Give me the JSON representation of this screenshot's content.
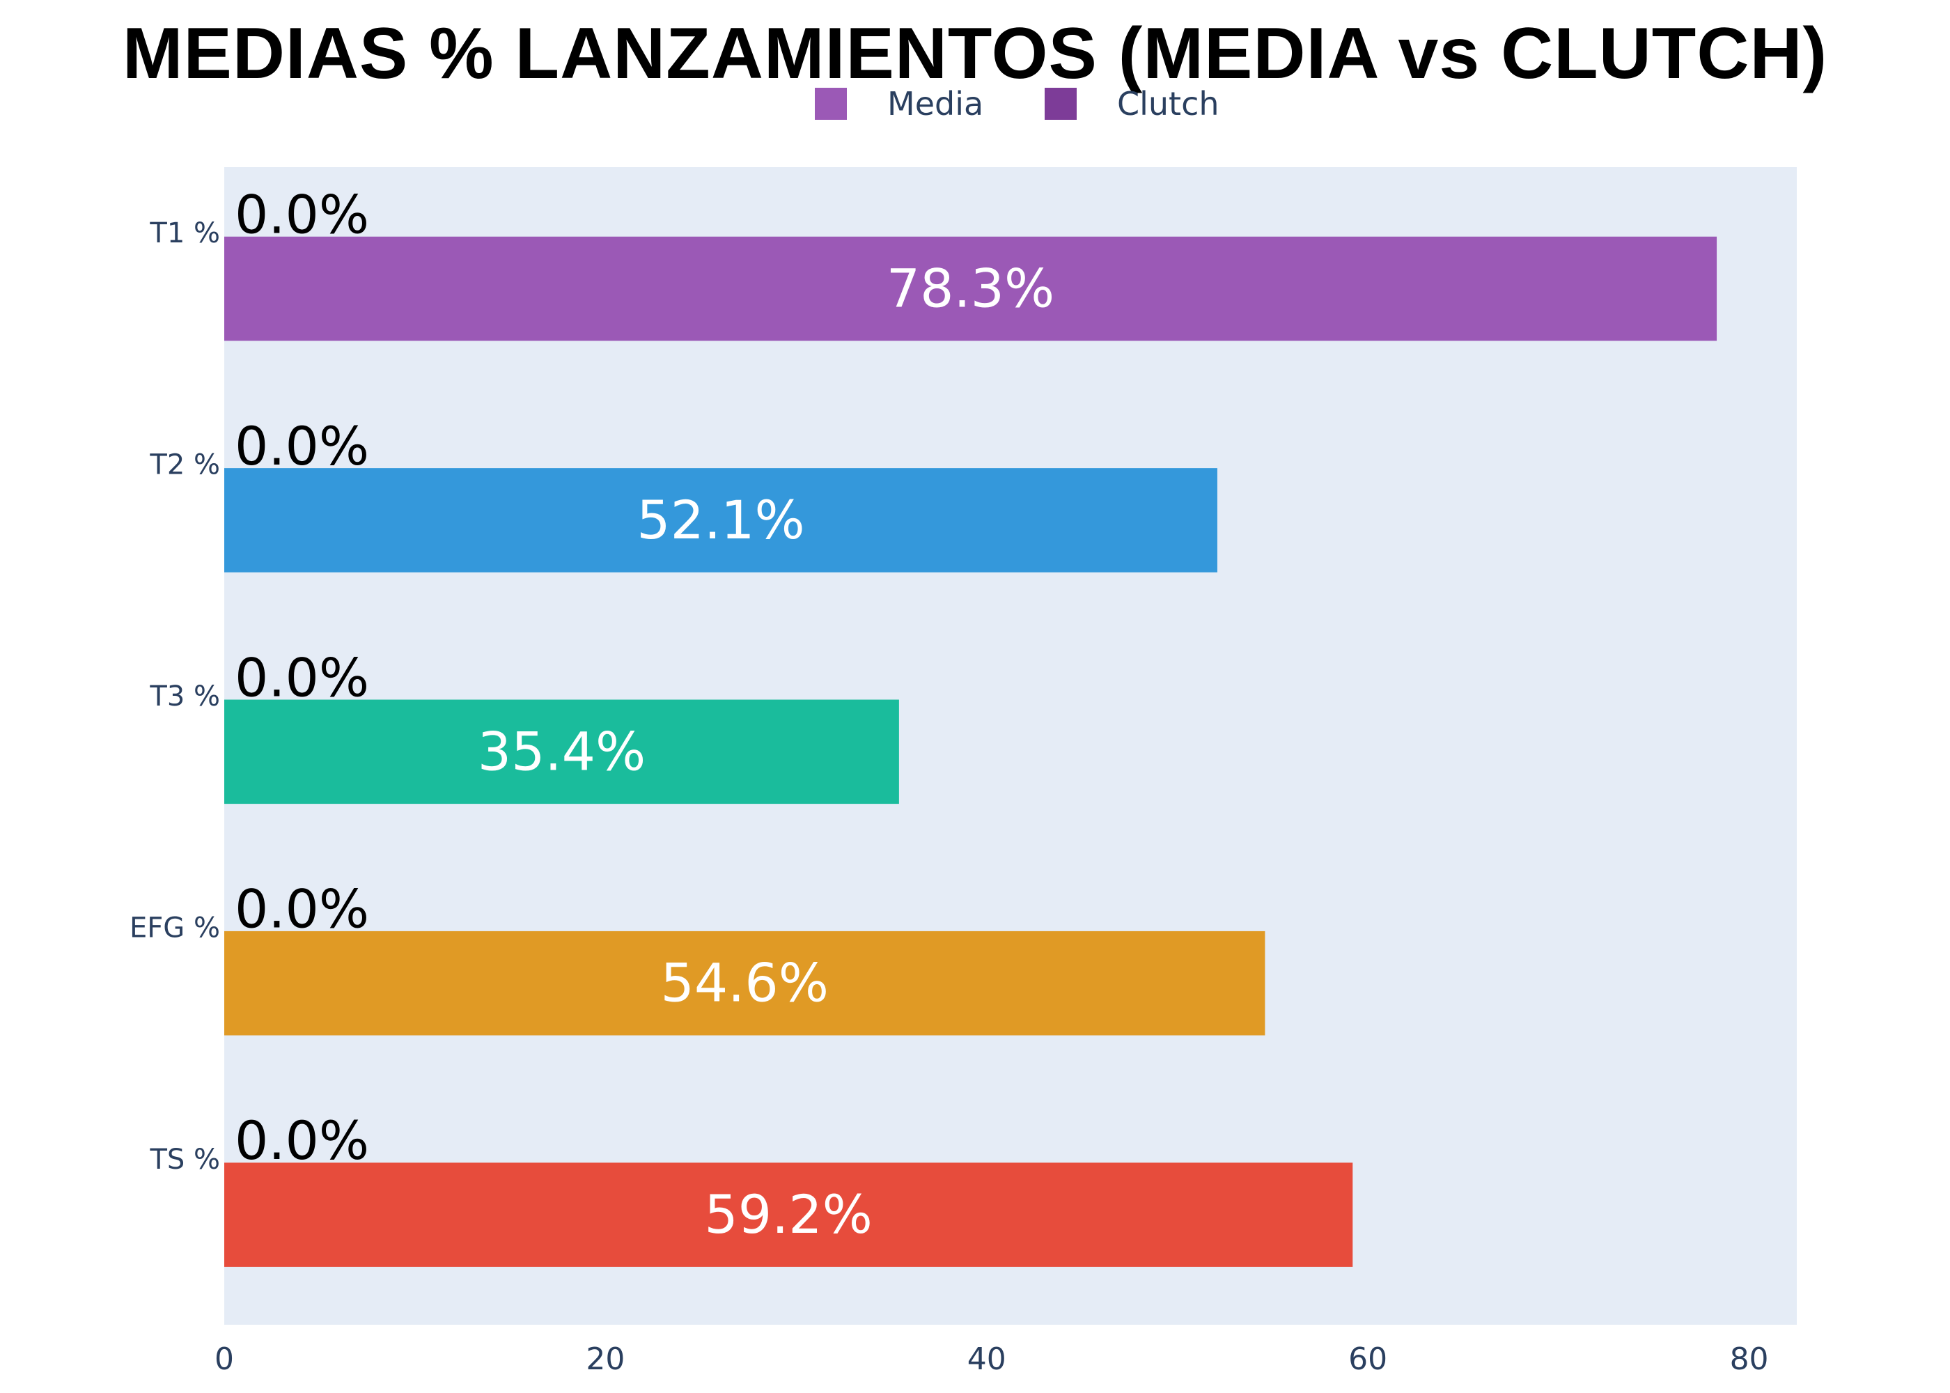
{
  "chart_data": {
    "type": "bar",
    "orientation": "horizontal",
    "title": "MEDIAS % LANZAMIENTOS (MEDIA vs CLUTCH)",
    "categories": [
      "T1 %",
      "T2 %",
      "T3 %",
      "EFG %",
      "TS %"
    ],
    "series": [
      {
        "name": "Media",
        "values": [
          78.3,
          52.1,
          35.4,
          54.6,
          59.2
        ],
        "labels": [
          "78.3%",
          "52.1%",
          "35.4%",
          "54.6%",
          "59.2%"
        ],
        "colors": [
          "#9b59b6",
          "#3498db",
          "#1abc9c",
          "#e09a25",
          "#e74c3c"
        ]
      },
      {
        "name": "Clutch",
        "values": [
          0,
          0,
          0,
          0,
          0
        ],
        "labels": [
          "0.0%",
          "0.0%",
          "0.0%",
          "0.0%",
          "0.0%"
        ],
        "color": "#7d3c98"
      }
    ],
    "xlim": [
      0,
      82.5
    ],
    "xticks": [
      0,
      20,
      40,
      60,
      80
    ],
    "legend": {
      "position": "top-center",
      "entries": [
        "Media",
        "Clutch"
      ],
      "colors": [
        "#9b59b6",
        "#7d3c98"
      ]
    },
    "plot_background": "#e5ecf6",
    "grid": false
  }
}
